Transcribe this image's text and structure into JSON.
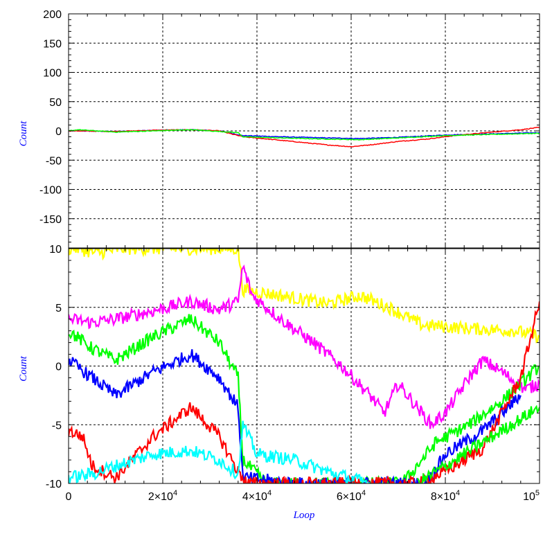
{
  "chart_data": [
    {
      "type": "line",
      "xlabel": "",
      "ylabel": "Count",
      "xlim": [
        0,
        100000
      ],
      "ylim": [
        -200,
        200
      ],
      "y_ticks": [
        "200",
        "150",
        "100",
        "50",
        "0",
        "-50",
        "-100",
        "-150"
      ],
      "grid": true,
      "series": [
        {
          "color": "#0000ff",
          "points": [
            [
              0,
              0
            ],
            [
              2000,
              0
            ],
            [
              10000,
              -1
            ],
            [
              18000,
              1
            ],
            [
              26000,
              2
            ],
            [
              32000,
              0
            ],
            [
              37000,
              -8
            ],
            [
              45000,
              -10
            ],
            [
              55000,
              -12
            ],
            [
              62000,
              -13
            ],
            [
              70000,
              -11
            ],
            [
              80000,
              -7
            ],
            [
              90000,
              -5
            ],
            [
              100000,
              -3
            ]
          ]
        },
        {
          "color": "#ff0000",
          "points": [
            [
              0,
              0
            ],
            [
              2000,
              0
            ],
            [
              10000,
              -1
            ],
            [
              18000,
              1
            ],
            [
              26000,
              2
            ],
            [
              32000,
              0
            ],
            [
              37000,
              -10
            ],
            [
              45000,
              -16
            ],
            [
              55000,
              -24
            ],
            [
              60000,
              -27
            ],
            [
              65000,
              -23
            ],
            [
              70000,
              -18
            ],
            [
              76000,
              -14
            ],
            [
              82000,
              -8
            ],
            [
              90000,
              -2
            ],
            [
              96000,
              2
            ],
            [
              100000,
              6
            ]
          ]
        },
        {
          "color": "#00ff00",
          "points": [
            [
              0,
              0
            ],
            [
              2000,
              2
            ],
            [
              10000,
              -2
            ],
            [
              18000,
              0
            ],
            [
              26000,
              2
            ],
            [
              32000,
              -1
            ],
            [
              36000,
              -3
            ],
            [
              37000,
              -10
            ],
            [
              45000,
              -12
            ],
            [
              55000,
              -14
            ],
            [
              62000,
              -15
            ],
            [
              70000,
              -12
            ],
            [
              80000,
              -8
            ],
            [
              90000,
              -6
            ],
            [
              100000,
              -4
            ]
          ]
        }
      ]
    },
    {
      "type": "line",
      "xlabel": "Loop",
      "ylabel": "Count",
      "xlim": [
        0,
        100000
      ],
      "ylim": [
        -10,
        10
      ],
      "x_ticks": [
        {
          "base": "0",
          "exp": ""
        },
        {
          "base": "2×10",
          "exp": "4"
        },
        {
          "base": "4×10",
          "exp": "4"
        },
        {
          "base": "6×10",
          "exp": "4"
        },
        {
          "base": "8×10",
          "exp": "4"
        },
        {
          "base": "10",
          "exp": "5"
        }
      ],
      "y_ticks": [
        "10",
        "5",
        "0",
        "-5",
        "-10"
      ],
      "grid": true,
      "series": [
        {
          "color": "#ffff00",
          "points": [
            [
              0,
              10
            ],
            [
              2000,
              10
            ],
            [
              6000,
              9.6
            ],
            [
              11000,
              10
            ],
            [
              36000,
              10
            ],
            [
              37000,
              6.5
            ],
            [
              45000,
              6
            ],
            [
              55000,
              5.3
            ],
            [
              62000,
              6
            ],
            [
              68000,
              5
            ],
            [
              75000,
              3.5
            ],
            [
              85000,
              3.2
            ],
            [
              95000,
              3
            ],
            [
              100000,
              2.5
            ]
          ]
        },
        {
          "color": "#ff00ff",
          "points": [
            [
              0,
              4
            ],
            [
              5000,
              3.7
            ],
            [
              10000,
              4
            ],
            [
              18000,
              4.7
            ],
            [
              26000,
              5.5
            ],
            [
              32000,
              4.8
            ],
            [
              36000,
              5.5
            ],
            [
              37000,
              8.5
            ],
            [
              39000,
              6
            ],
            [
              45000,
              4
            ],
            [
              52000,
              2
            ],
            [
              58000,
              0
            ],
            [
              64000,
              -2.5
            ],
            [
              67000,
              -4
            ],
            [
              70000,
              -1.5
            ],
            [
              73000,
              -3
            ],
            [
              77000,
              -5
            ],
            [
              80000,
              -4
            ],
            [
              85000,
              -1
            ],
            [
              88000,
              0.5
            ],
            [
              92000,
              -0.5
            ],
            [
              97000,
              -2
            ],
            [
              100000,
              -1.5
            ]
          ]
        },
        {
          "color": "#00ff00",
          "points": [
            [
              0,
              3
            ],
            [
              5000,
              1.5
            ],
            [
              10000,
              0.5
            ],
            [
              18000,
              2.5
            ],
            [
              26000,
              4
            ],
            [
              32000,
              2
            ],
            [
              36000,
              -1
            ],
            [
              37000,
              -8
            ],
            [
              42000,
              -10
            ],
            [
              70000,
              -10
            ],
            [
              72000,
              -9.5
            ],
            [
              78000,
              -6.5
            ],
            [
              85000,
              -5
            ],
            [
              92000,
              -3
            ],
            [
              100000,
              0
            ]
          ]
        },
        {
          "color": "#0000ff",
          "points": [
            [
              0,
              0.5
            ],
            [
              5000,
              -1
            ],
            [
              10000,
              -2.5
            ],
            [
              18000,
              -0.5
            ],
            [
              26000,
              1
            ],
            [
              32000,
              -1
            ],
            [
              36000,
              -3.5
            ],
            [
              37000,
              -9.5
            ],
            [
              44000,
              -9.8
            ],
            [
              48000,
              -10
            ],
            [
              76000,
              -10
            ],
            [
              80000,
              -7.5
            ],
            [
              88000,
              -5.5
            ],
            [
              96000,
              -2.5
            ]
          ]
        },
        {
          "color": "#ff0000",
          "points": [
            [
              0,
              -5.5
            ],
            [
              3000,
              -6
            ],
            [
              5000,
              -8.5
            ],
            [
              10000,
              -9.5
            ],
            [
              18000,
              -6
            ],
            [
              26000,
              -3.5
            ],
            [
              32000,
              -6
            ],
            [
              36000,
              -9
            ],
            [
              38000,
              -10
            ],
            [
              74000,
              -10
            ],
            [
              80000,
              -9
            ],
            [
              88000,
              -7
            ],
            [
              92000,
              -4
            ],
            [
              96000,
              -1
            ],
            [
              100000,
              5.5
            ]
          ]
        },
        {
          "color": "#00ff00",
          "points": [
            [
              74000,
              -10
            ],
            [
              80000,
              -8.5
            ],
            [
              88000,
              -6.5
            ],
            [
              94000,
              -5
            ],
            [
              100000,
              -3.5
            ]
          ]
        },
        {
          "color": "#00ffff",
          "points": [
            [
              0,
              -9.5
            ],
            [
              5000,
              -9.2
            ],
            [
              10000,
              -8.5
            ],
            [
              18000,
              -7.5
            ],
            [
              26000,
              -7.2
            ],
            [
              32000,
              -8
            ],
            [
              36000,
              -9.2
            ],
            [
              37000,
              -5
            ],
            [
              40000,
              -7.5
            ],
            [
              48000,
              -8
            ],
            [
              55000,
              -9
            ],
            [
              62000,
              -9.8
            ],
            [
              64000,
              -10
            ]
          ]
        }
      ]
    }
  ]
}
